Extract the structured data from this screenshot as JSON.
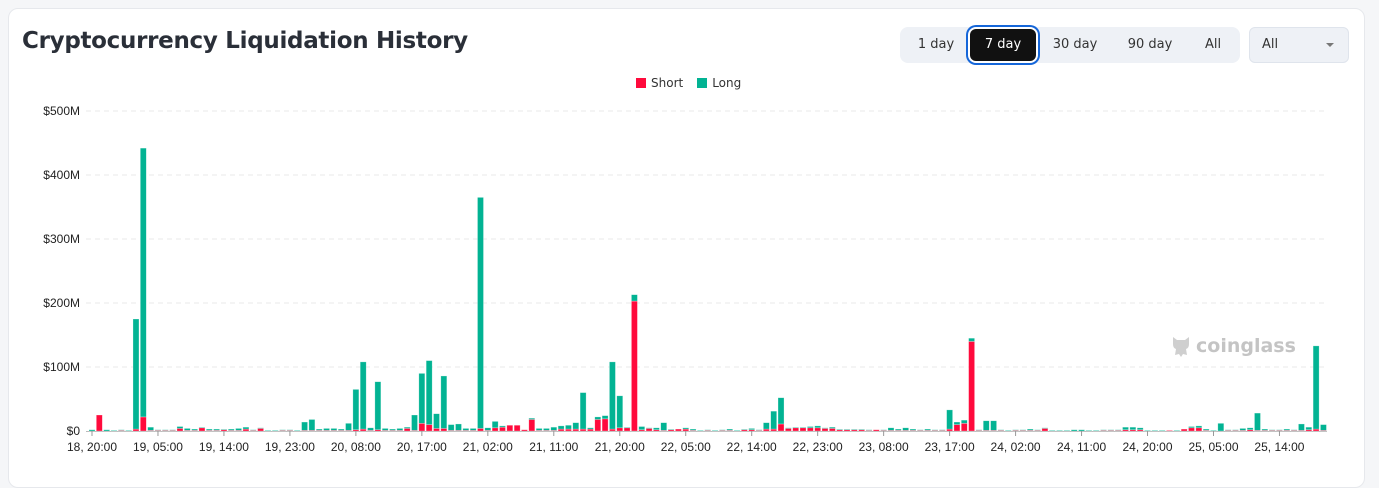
{
  "title": "Cryptocurrency Liquidation History",
  "range_buttons": [
    "1 day",
    "7 day",
    "30 day",
    "90 day",
    "All"
  ],
  "active_range": "7 day",
  "coin_select": {
    "value": "All"
  },
  "watermark": "coinglass",
  "colors": {
    "short": "#ff0a3c",
    "long": "#02b393",
    "active_outline": "#1566d9"
  },
  "chart_data": {
    "type": "bar",
    "stacked": true,
    "legend": {
      "placement": "top-center",
      "entries": [
        "Short",
        "Long"
      ]
    },
    "ylim": [
      0,
      500
    ],
    "y_ticks": [
      "$0",
      "$100M",
      "$200M",
      "$300M",
      "$400M",
      "$500M"
    ],
    "y_unit": "$M",
    "grid": true,
    "x_interval": "1 hour",
    "x_tick_labels": [
      "18, 20:00",
      "19, 05:00",
      "19, 14:00",
      "19, 23:00",
      "20, 08:00",
      "20, 17:00",
      "21, 02:00",
      "21, 11:00",
      "21, 20:00",
      "22, 05:00",
      "22, 14:00",
      "22, 23:00",
      "23, 08:00",
      "23, 17:00",
      "24, 02:00",
      "24, 11:00",
      "24, 20:00",
      "25, 05:00",
      "25, 14:00"
    ],
    "series": [
      {
        "name": "Short",
        "values": [
          0,
          25,
          0,
          0,
          1,
          0,
          3,
          22,
          1,
          1,
          1,
          1,
          4,
          1,
          1,
          5,
          1,
          1,
          2,
          1,
          1,
          3,
          1,
          4,
          0,
          0,
          1,
          1,
          0,
          1,
          1,
          1,
          1,
          1,
          1,
          1,
          2,
          3,
          1,
          2,
          1,
          1,
          1,
          4,
          1,
          12,
          10,
          4,
          4,
          1,
          1,
          1,
          1,
          4,
          1,
          5,
          6,
          9,
          9,
          2,
          18,
          1,
          1,
          1,
          3,
          3,
          3,
          3,
          3,
          18,
          19,
          3,
          5,
          5,
          203,
          2,
          4,
          2,
          1,
          2,
          3,
          3,
          1,
          0,
          1,
          0,
          1,
          1,
          0,
          2,
          2,
          1,
          3,
          3,
          11,
          4,
          5,
          5,
          5,
          5,
          4,
          4,
          2,
          2,
          2,
          2,
          1,
          2,
          1,
          1,
          1,
          1,
          1,
          1,
          1,
          1,
          1,
          3,
          10,
          12,
          140,
          1,
          1,
          1,
          1,
          0,
          1,
          1,
          1,
          1,
          4,
          0,
          0,
          0,
          0,
          0,
          0,
          0,
          1,
          1,
          1,
          2,
          2,
          2,
          0,
          0,
          0,
          1,
          0,
          3,
          5,
          5,
          1,
          0,
          0,
          1,
          1,
          1,
          2,
          1,
          1,
          1,
          1,
          1,
          1,
          1,
          2,
          3,
          1
        ]
      },
      {
        "name": "Long",
        "values": [
          2,
          0,
          2,
          1,
          1,
          1,
          172,
          420,
          5,
          1,
          1,
          1,
          3,
          3,
          2,
          1,
          2,
          2,
          1,
          2,
          3,
          3,
          1,
          1,
          1,
          1,
          1,
          1,
          1,
          13,
          17,
          2,
          3,
          3,
          2,
          11,
          63,
          105,
          4,
          75,
          3,
          2,
          3,
          2,
          24,
          78,
          100,
          23,
          82,
          9,
          10,
          3,
          3,
          361,
          4,
          10,
          2,
          0,
          0,
          0,
          2,
          3,
          3,
          5,
          5,
          6,
          10,
          57,
          2,
          4,
          5,
          105,
          50,
          1,
          10,
          5,
          1,
          3,
          12,
          1,
          0,
          2,
          2,
          1,
          1,
          1,
          1,
          2,
          1,
          1,
          2,
          1,
          10,
          28,
          41,
          1,
          1,
          1,
          2,
          3,
          1,
          2,
          1,
          1,
          1,
          1,
          1,
          0,
          1,
          4,
          2,
          4,
          2,
          1,
          2,
          1,
          1,
          30,
          4,
          5,
          5,
          1,
          15,
          15,
          1,
          1,
          1,
          1,
          2,
          1,
          1,
          1,
          1,
          1,
          2,
          2,
          1,
          1,
          1,
          1,
          1,
          4,
          4,
          3,
          1,
          1,
          1,
          0,
          1,
          0,
          2,
          3,
          2,
          1,
          12,
          1,
          1,
          3,
          3,
          27,
          2,
          1,
          1,
          2,
          1,
          10,
          4,
          130,
          9
        ]
      }
    ]
  }
}
